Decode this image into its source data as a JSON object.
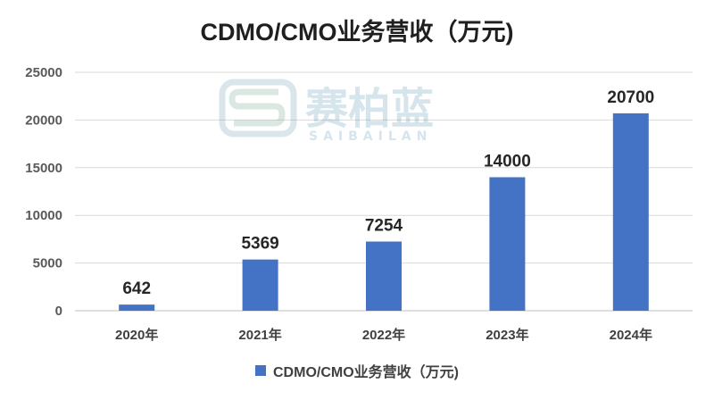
{
  "chart_data": {
    "type": "bar",
    "title": "CDMO/CMO业务营收（万元)",
    "categories": [
      "2020年",
      "2021年",
      "2022年",
      "2023年",
      "2024年"
    ],
    "series": [
      {
        "name": "CDMO/CMO业务营收（万元)",
        "values": [
          642,
          5369,
          7254,
          14000,
          20700
        ],
        "color": "#4472C4"
      }
    ],
    "ylim": [
      0,
      25000
    ],
    "yticks": [
      0,
      5000,
      10000,
      15000,
      20000,
      25000
    ],
    "grid": true,
    "legend_position": "bottom",
    "watermark": {
      "text": "赛柏蓝",
      "subtext": "SAIBAILAN"
    }
  }
}
